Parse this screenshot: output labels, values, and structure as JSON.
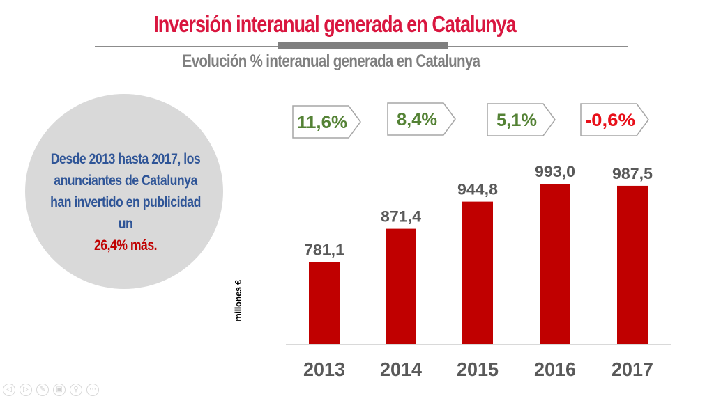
{
  "header": {
    "title": "Inversión interanual generada en Catalunya",
    "subtitle": "Evolución % interanual generada en Catalunya"
  },
  "summary": {
    "line1": "Desde 2013 hasta 2017, los",
    "line2": "anunciantes de Catalunya",
    "line3": "han invertido en publicidad",
    "line4": "un",
    "highlight": "26,4% más."
  },
  "colors": {
    "title": "#d9163f",
    "bar": "#c00000",
    "positive": "#548235",
    "negative": "#e8101a",
    "summary_text": "#2f5597",
    "highlight": "#c00000"
  },
  "chart_data": {
    "type": "bar",
    "title": "Evolución % interanual generada en Catalunya",
    "xlabel": "",
    "ylabel": "millones €",
    "categories": [
      "2013",
      "2014",
      "2015",
      "2016",
      "2017"
    ],
    "values": [
      781.1,
      871.4,
      944.8,
      993.0,
      987.5
    ],
    "value_labels": [
      "781,1",
      "871,4",
      "944,8",
      "993,0",
      "987,5"
    ],
    "growth_callouts": [
      "11,6%",
      "8,4%",
      "5,1%",
      "-0,6%"
    ],
    "growth_values": [
      11.6,
      8.4,
      5.1,
      -0.6
    ],
    "grid": false,
    "legend": "none"
  },
  "nav": {
    "icons": [
      "previous-slide-icon",
      "next-slide-icon",
      "pen-icon",
      "slides-icon",
      "zoom-icon",
      "more-icon"
    ],
    "glyphs": [
      "◁",
      "▷",
      "✎",
      "▣",
      "⚲",
      "⋯"
    ]
  }
}
